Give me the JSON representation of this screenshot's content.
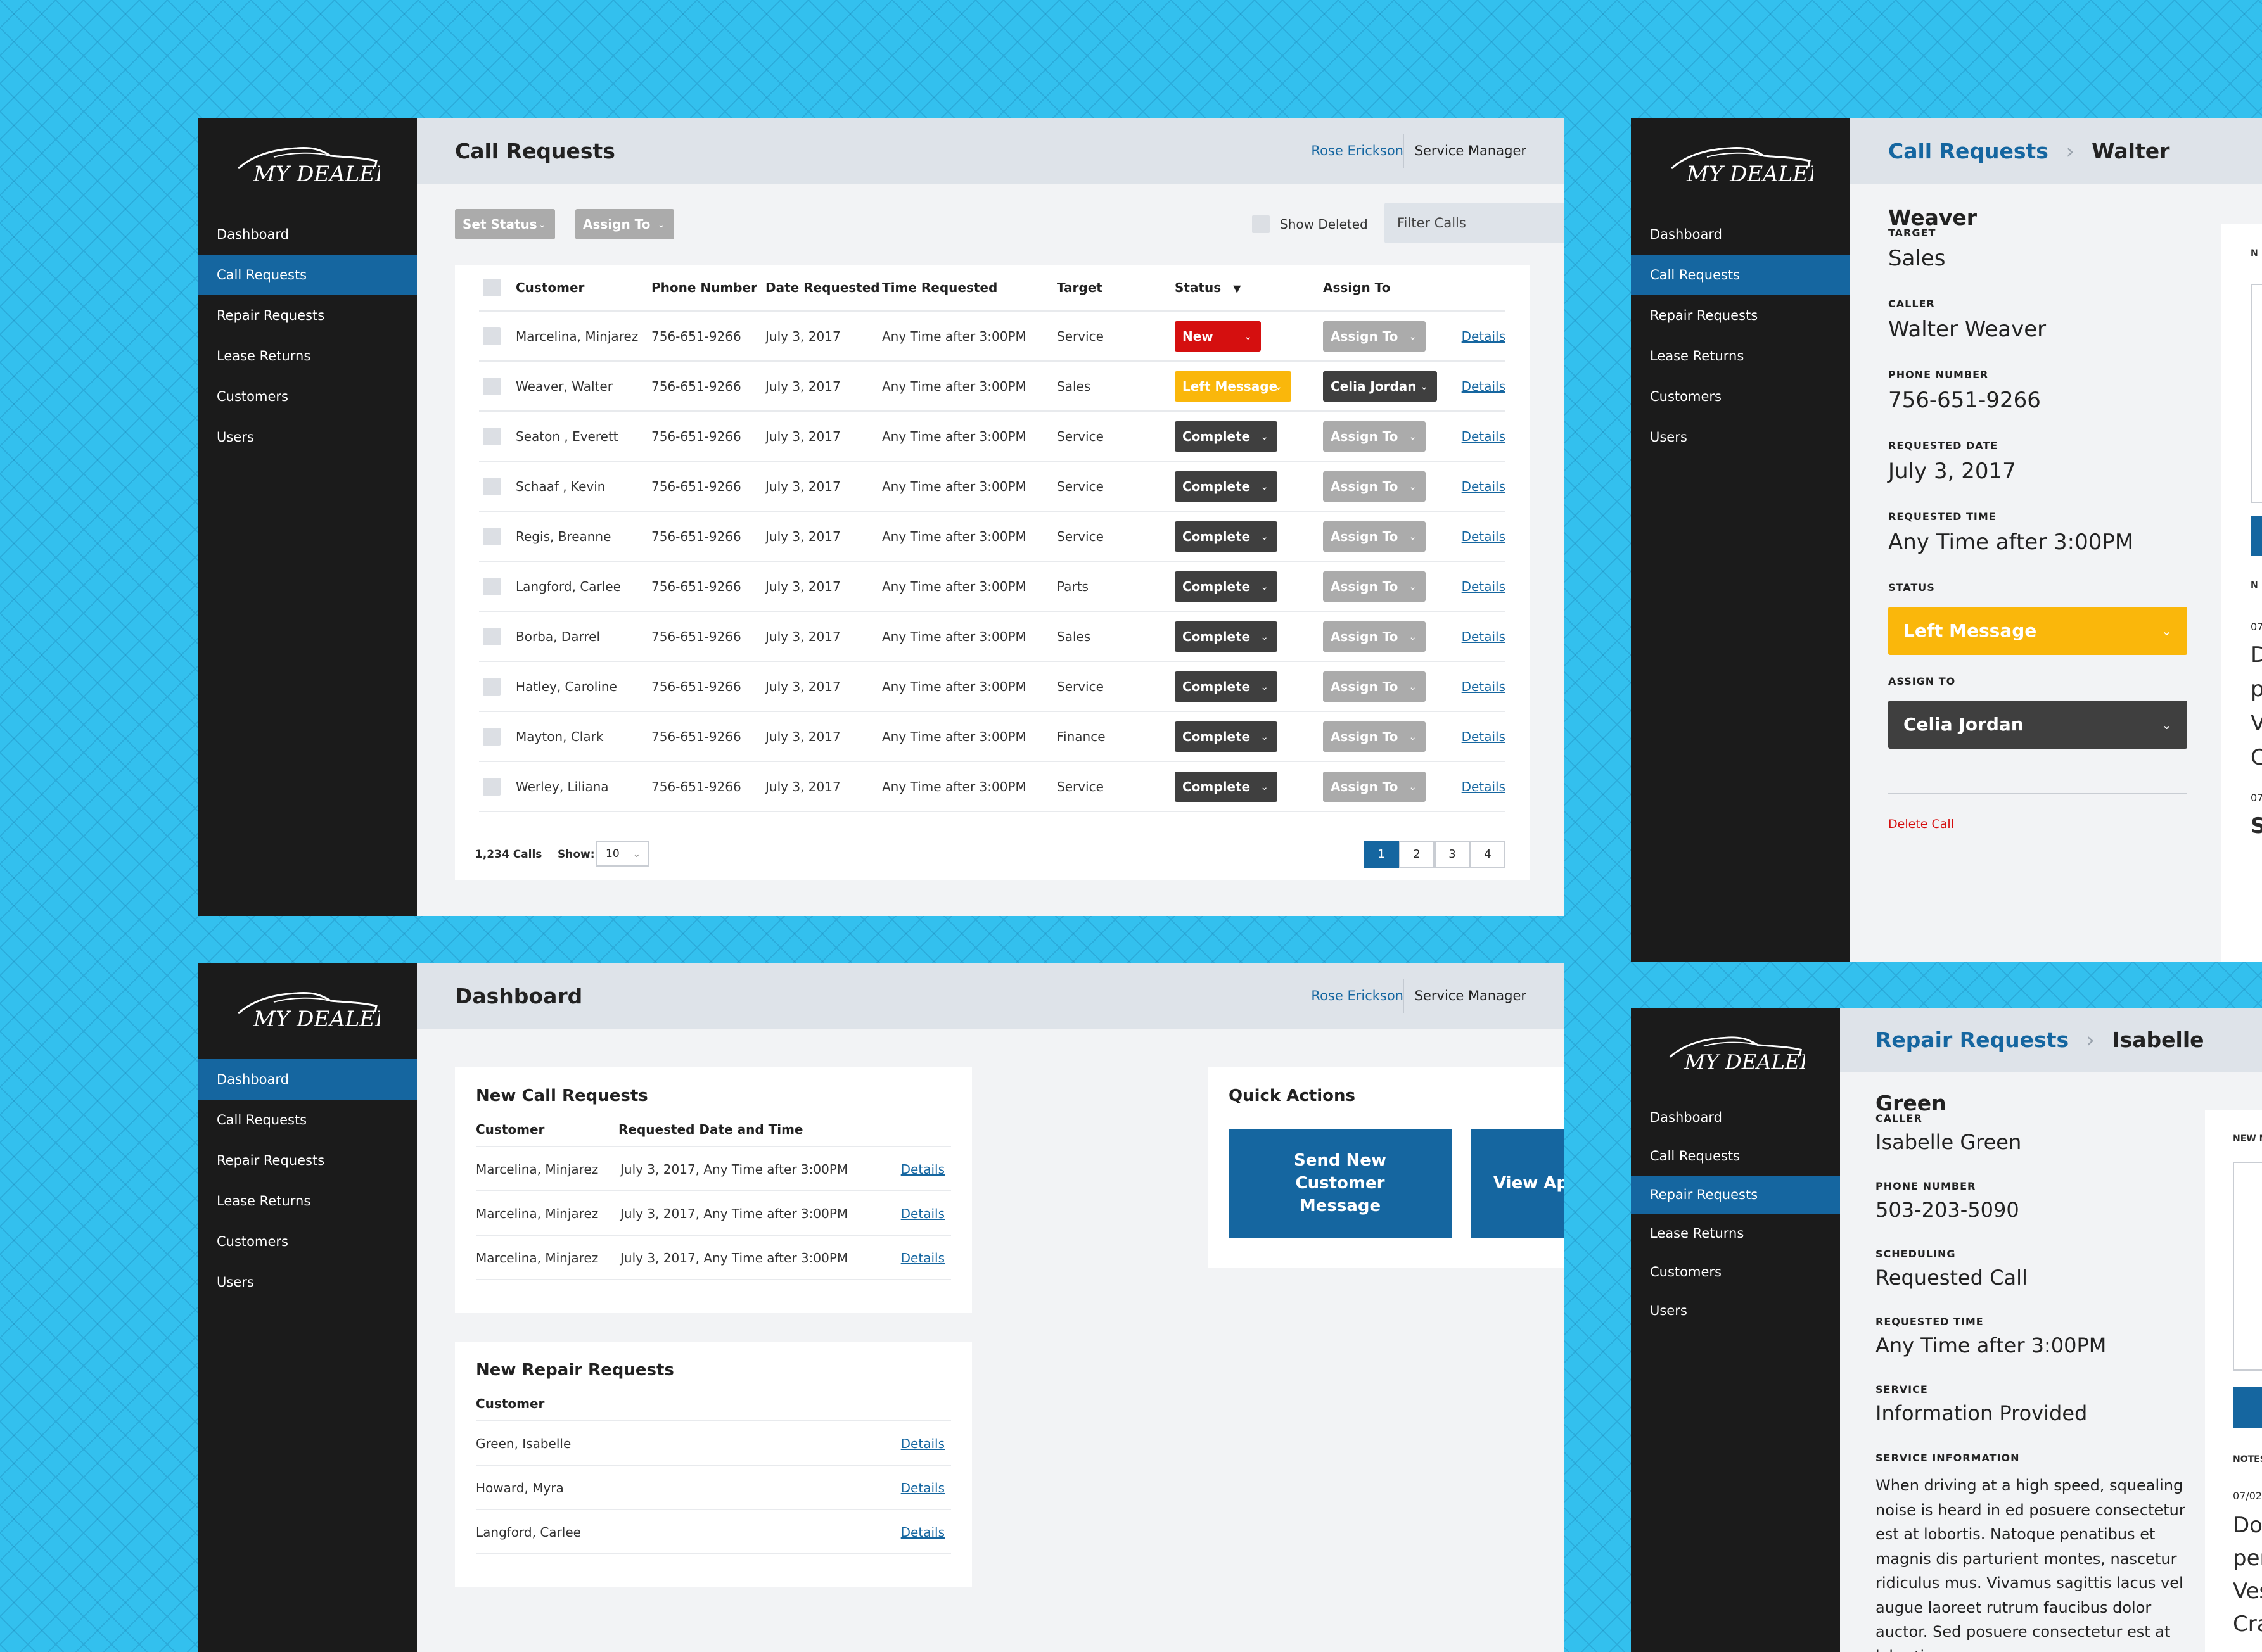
{
  "brand": {
    "logo_text": "MY DEALER"
  },
  "nav": {
    "dashboard": "Dashboard",
    "call_requests": "Call Requests",
    "repair_requests": "Repair Requests",
    "lease_returns": "Lease Returns",
    "customers": "Customers",
    "users": "Users"
  },
  "user": {
    "name": "Rose Erickson",
    "role": "Service Manager"
  },
  "call_list": {
    "title": "Call Requests",
    "set_status": "Set Status",
    "assign_to_btn": "Assign To",
    "show_deleted": "Show Deleted",
    "filter_placeholder": "Filter Calls",
    "columns": {
      "customer": "Customer",
      "phone": "Phone Number",
      "date": "Date Requested",
      "time": "Time Requested",
      "target": "Target",
      "status": "Status",
      "assign": "Assign To"
    },
    "rows": [
      {
        "customer": "Marcelina, Minjarez",
        "phone": "756-651-9266",
        "date": "July 3, 2017",
        "time": "Any Time after 3:00PM",
        "target": "Service",
        "status": "New",
        "status_color": "#d50f0f",
        "assign": "Assign To",
        "details": "Details"
      },
      {
        "customer": "Weaver, Walter",
        "phone": "756-651-9266",
        "date": "July 3, 2017",
        "time": "Any Time after 3:00PM",
        "target": "Sales",
        "status": "Left Message",
        "status_color": "#fab70b",
        "assign": "Celia Jordan",
        "details": "Details"
      },
      {
        "customer": "Seaton , Everett",
        "phone": "756-651-9266",
        "date": "July 3, 2017",
        "time": "Any Time after 3:00PM",
        "target": "Service",
        "status": "Complete",
        "status_color": "#3f3f3f",
        "assign": "Assign To",
        "details": "Details"
      },
      {
        "customer": "Schaaf , Kevin",
        "phone": "756-651-9266",
        "date": "July 3, 2017",
        "time": "Any Time after 3:00PM",
        "target": "Service",
        "status": "Complete",
        "status_color": "#3f3f3f",
        "assign": "Assign To",
        "details": "Details"
      },
      {
        "customer": "Regis, Breanne",
        "phone": "756-651-9266",
        "date": "July 3, 2017",
        "time": "Any Time after 3:00PM",
        "target": "Service",
        "status": "Complete",
        "status_color": "#3f3f3f",
        "assign": "Assign To",
        "details": "Details"
      },
      {
        "customer": "Langford, Carlee",
        "phone": "756-651-9266",
        "date": "July 3, 2017",
        "time": "Any Time after 3:00PM",
        "target": "Parts",
        "status": "Complete",
        "status_color": "#3f3f3f",
        "assign": "Assign To",
        "details": "Details"
      },
      {
        "customer": "Borba, Darrel",
        "phone": "756-651-9266",
        "date": "July 3, 2017",
        "time": "Any Time after 3:00PM",
        "target": "Sales",
        "status": "Complete",
        "status_color": "#3f3f3f",
        "assign": "Assign To",
        "details": "Details"
      },
      {
        "customer": "Hatley, Caroline",
        "phone": "756-651-9266",
        "date": "July 3, 2017",
        "time": "Any Time after 3:00PM",
        "target": "Service",
        "status": "Complete",
        "status_color": "#3f3f3f",
        "assign": "Assign To",
        "details": "Details"
      },
      {
        "customer": "Mayton, Clark",
        "phone": "756-651-9266",
        "date": "July 3, 2017",
        "time": "Any Time after 3:00PM",
        "target": "Finance",
        "status": "Complete",
        "status_color": "#3f3f3f",
        "assign": "Assign To",
        "details": "Details"
      },
      {
        "customer": "Werley, Liliana",
        "phone": "756-651-9266",
        "date": "July 3, 2017",
        "time": "Any Time after 3:00PM",
        "target": "Service",
        "status": "Complete",
        "status_color": "#3f3f3f",
        "assign": "Assign To",
        "details": "Details"
      }
    ],
    "count": "1,234 Calls",
    "show_label": "Show:",
    "show_value": "10",
    "pages": [
      "1",
      "2",
      "3",
      "4"
    ],
    "current_page": "1"
  },
  "call_detail": {
    "crumb_parent": "Call Requests",
    "crumb_current": "Walter Weaver",
    "target_label": "TARGET",
    "target": "Sales",
    "caller_label": "CALLER",
    "caller": "Walter Weaver",
    "phone_label": "PHONE NUMBER",
    "phone": "756-651-9266",
    "date_label": "REQUESTED DATE",
    "date": "July 3, 2017",
    "time_label": "REQUESTED TIME",
    "time": "Any Time after 3:00PM",
    "status_label": "STATUS",
    "status": "Left Message",
    "assign_label": "ASSIGN TO",
    "assign": "Celia Jordan",
    "delete": "Delete Call",
    "side_fragments": [
      "N",
      "N",
      "07",
      "D",
      "p",
      "V",
      "C",
      "07",
      "S"
    ]
  },
  "dashboard": {
    "title": "Dashboard",
    "new_calls_title": "New Call Requests",
    "calls_col_customer": "Customer",
    "calls_col_datetime": "Requested Date and Time",
    "calls": [
      {
        "customer": "Marcelina, Minjarez",
        "datetime": "July 3, 2017, Any Time after 3:00PM",
        "details": "Details"
      },
      {
        "customer": "Marcelina, Minjarez",
        "datetime": "July 3, 2017, Any Time after 3:00PM",
        "details": "Details"
      },
      {
        "customer": "Marcelina, Minjarez",
        "datetime": "July 3, 2017, Any Time after 3:00PM",
        "details": "Details"
      }
    ],
    "repairs_title": "New Repair Requests",
    "repairs_col_customer": "Customer",
    "repairs": [
      {
        "customer": "Green, Isabelle",
        "details": "Details"
      },
      {
        "customer": "Howard, Myra",
        "details": "Details"
      },
      {
        "customer": "Langford, Carlee",
        "details": "Details"
      }
    ],
    "quick_actions_title": "Quick Actions",
    "qa_message": "Send New Customer Message",
    "qa_analytics": "View App Analytics"
  },
  "repair_detail": {
    "crumb_parent": "Repair Requests",
    "crumb_current": "Isabelle Green",
    "caller_label": "CALLER",
    "caller": "Isabelle Green",
    "phone_label": "PHONE NUMBER",
    "phone": "503-203-5090",
    "scheduling_label": "SCHEDULING",
    "scheduling": "Requested Call",
    "time_label": "REQUESTED TIME",
    "time": "Any Time after 3:00PM",
    "service_label": "SERVICE",
    "service": "Information Provided",
    "info_label": "SERVICE INFORMATION",
    "info_lines": [
      "When driving at a high speed, squealing",
      "noise is heard in ed posuere consectetur",
      "est at lobortis. Natoque penatibus et",
      "magnis dis parturient montes, nascetur",
      "ridiculus mus. Vivamus sagittis lacus vel",
      "augue laoreet rutrum faucibus dolor",
      "auctor. Sed posuere consectetur est at",
      "lobortis"
    ],
    "side_new_label": "NEW N",
    "side_notes_label": "NOTES",
    "side_note_date": "07/02/",
    "side_note_lines": [
      "Don",
      "pena",
      "Vest",
      "Cras"
    ]
  }
}
